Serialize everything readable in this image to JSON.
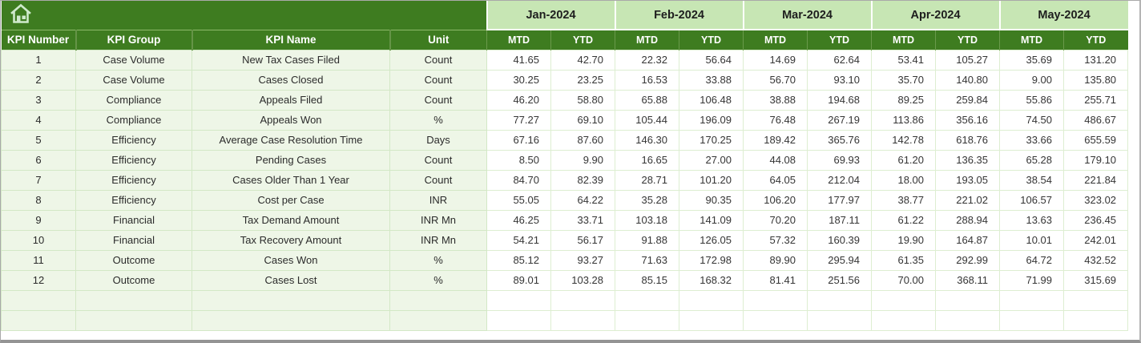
{
  "banner": {
    "home_icon": "home"
  },
  "columns": {
    "left": [
      "KPI Number",
      "KPI Group",
      "KPI Name",
      "Unit"
    ],
    "months": [
      "Jan-2024",
      "Feb-2024",
      "Mar-2024",
      "Apr-2024",
      "May-2024"
    ],
    "period_types": [
      "MTD",
      "YTD"
    ]
  },
  "rows": [
    {
      "kpi_number": "1",
      "kpi_group": "Case Volume",
      "kpi_name": "New Tax Cases Filed",
      "unit": "Count",
      "values": [
        "41.65",
        "42.70",
        "22.32",
        "56.64",
        "14.69",
        "62.64",
        "53.41",
        "105.27",
        "35.69",
        "131.20"
      ]
    },
    {
      "kpi_number": "2",
      "kpi_group": "Case Volume",
      "kpi_name": "Cases Closed",
      "unit": "Count",
      "values": [
        "30.25",
        "23.25",
        "16.53",
        "33.88",
        "56.70",
        "93.10",
        "35.70",
        "140.80",
        "9.00",
        "135.80"
      ]
    },
    {
      "kpi_number": "3",
      "kpi_group": "Compliance",
      "kpi_name": "Appeals Filed",
      "unit": "Count",
      "values": [
        "46.20",
        "58.80",
        "65.88",
        "106.48",
        "38.88",
        "194.68",
        "89.25",
        "259.84",
        "55.86",
        "255.71"
      ]
    },
    {
      "kpi_number": "4",
      "kpi_group": "Compliance",
      "kpi_name": "Appeals Won",
      "unit": "%",
      "values": [
        "77.27",
        "69.10",
        "105.44",
        "196.09",
        "76.48",
        "267.19",
        "113.86",
        "356.16",
        "74.50",
        "486.67"
      ]
    },
    {
      "kpi_number": "5",
      "kpi_group": "Efficiency",
      "kpi_name": "Average Case Resolution Time",
      "unit": "Days",
      "values": [
        "67.16",
        "87.60",
        "146.30",
        "170.25",
        "189.42",
        "365.76",
        "142.78",
        "618.76",
        "33.66",
        "655.59"
      ]
    },
    {
      "kpi_number": "6",
      "kpi_group": "Efficiency",
      "kpi_name": "Pending Cases",
      "unit": "Count",
      "values": [
        "8.50",
        "9.90",
        "16.65",
        "27.00",
        "44.08",
        "69.93",
        "61.20",
        "136.35",
        "65.28",
        "179.10"
      ]
    },
    {
      "kpi_number": "7",
      "kpi_group": "Efficiency",
      "kpi_name": "Cases Older Than 1 Year",
      "unit": "Count",
      "values": [
        "84.70",
        "82.39",
        "28.71",
        "101.20",
        "64.05",
        "212.04",
        "18.00",
        "193.05",
        "38.54",
        "221.84"
      ]
    },
    {
      "kpi_number": "8",
      "kpi_group": "Efficiency",
      "kpi_name": "Cost per Case",
      "unit": "INR",
      "values": [
        "55.05",
        "64.22",
        "35.28",
        "90.35",
        "106.20",
        "177.97",
        "38.77",
        "221.02",
        "106.57",
        "323.02"
      ]
    },
    {
      "kpi_number": "9",
      "kpi_group": "Financial",
      "kpi_name": "Tax Demand Amount",
      "unit": "INR Mn",
      "values": [
        "46.25",
        "33.71",
        "103.18",
        "141.09",
        "70.20",
        "187.11",
        "61.22",
        "288.94",
        "13.63",
        "236.45"
      ]
    },
    {
      "kpi_number": "10",
      "kpi_group": "Financial",
      "kpi_name": "Tax Recovery Amount",
      "unit": "INR Mn",
      "values": [
        "54.21",
        "56.17",
        "91.88",
        "126.05",
        "57.32",
        "160.39",
        "19.90",
        "164.87",
        "10.01",
        "242.01"
      ]
    },
    {
      "kpi_number": "11",
      "kpi_group": "Outcome",
      "kpi_name": "Cases Won",
      "unit": "%",
      "values": [
        "85.12",
        "93.27",
        "71.63",
        "172.98",
        "89.90",
        "295.94",
        "61.35",
        "292.99",
        "64.72",
        "432.52"
      ]
    },
    {
      "kpi_number": "12",
      "kpi_group": "Outcome",
      "kpi_name": "Cases Lost",
      "unit": "%",
      "values": [
        "89.01",
        "103.28",
        "85.15",
        "168.32",
        "81.41",
        "251.56",
        "70.00",
        "368.11",
        "71.99",
        "315.69"
      ]
    }
  ],
  "empty_row_count": 2,
  "colors": {
    "header_green": "#3e7c20",
    "month_band_green": "#c7e6b4",
    "left_cell_bg": "#eef6e7",
    "data_cell_bg": "#ffffff",
    "grid_line": "#d3e8c6",
    "icon_fill": "#cfe9cc",
    "header_text": "#ffffff",
    "body_text": "#353535"
  }
}
